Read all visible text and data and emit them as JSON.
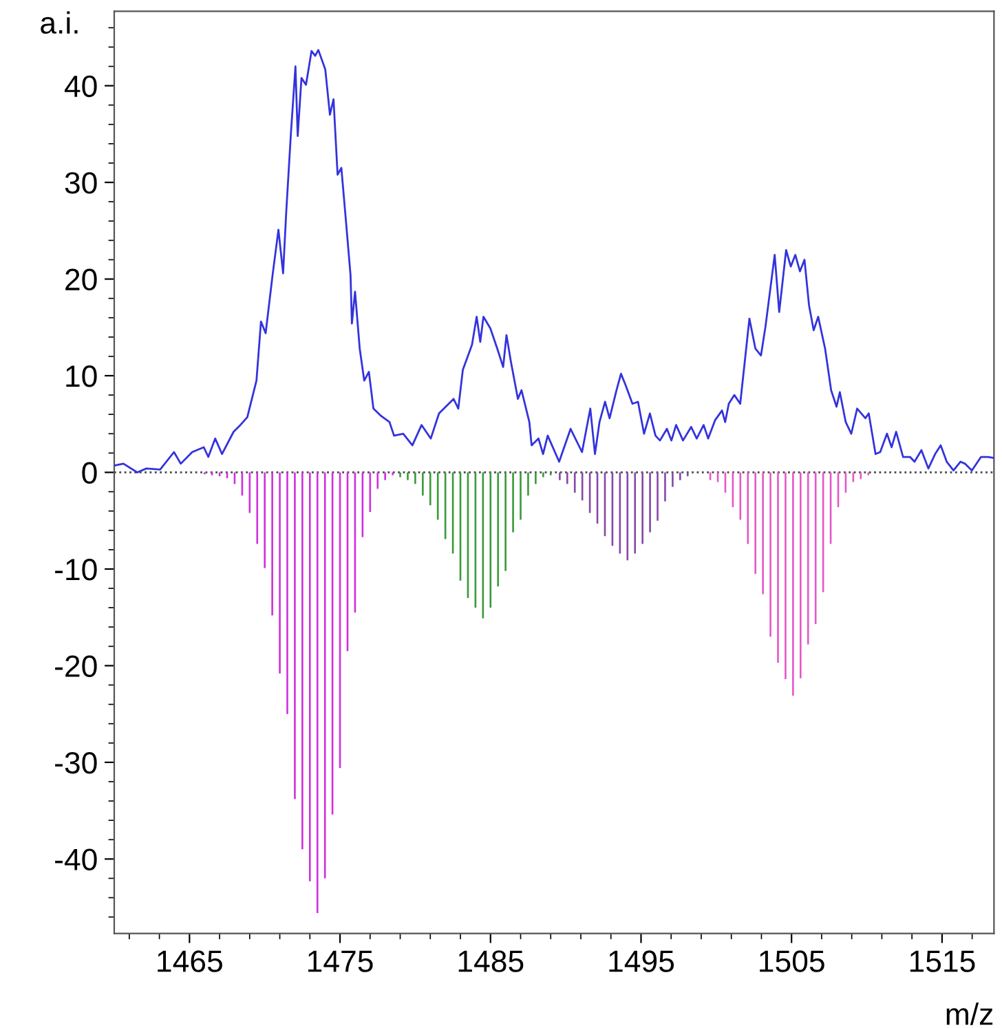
{
  "chart_data": {
    "type": "line",
    "xlabel": "m/z",
    "ylabel": "a.i.",
    "xlim": [
      1460.0,
      1518.45
    ],
    "ylim": [
      -47.7,
      47.7
    ],
    "xticks": [
      {
        "value": 1461,
        "label": null
      },
      {
        "value": 1463,
        "label": null
      },
      1465,
      {
        "value": 1467,
        "label": null
      },
      {
        "value": 1469,
        "label": null
      },
      {
        "value": 1471,
        "label": null
      },
      {
        "value": 1473,
        "label": null
      },
      1475,
      {
        "value": 1477,
        "label": null
      },
      {
        "value": 1479,
        "label": null
      },
      {
        "value": 1481,
        "label": null
      },
      {
        "value": 1483,
        "label": null
      },
      1485,
      {
        "value": 1487,
        "label": null
      },
      {
        "value": 1489,
        "label": null
      },
      {
        "value": 1491,
        "label": null
      },
      {
        "value": 1493,
        "label": null
      },
      1495,
      {
        "value": 1497,
        "label": null
      },
      {
        "value": 1499,
        "label": null
      },
      {
        "value": 1501,
        "label": null
      },
      {
        "value": 1503,
        "label": null
      },
      1505,
      {
        "value": 1507,
        "label": null
      },
      {
        "value": 1509,
        "label": null
      },
      {
        "value": 1511,
        "label": null
      },
      {
        "value": 1513,
        "label": null
      },
      1515,
      {
        "value": 1517,
        "label": null
      }
    ],
    "yticks": [
      {
        "value": -46,
        "label": null
      },
      {
        "value": -44,
        "label": null
      },
      {
        "value": -42,
        "label": null
      },
      -40,
      {
        "value": -38,
        "label": null
      },
      {
        "value": -36,
        "label": null
      },
      {
        "value": -34,
        "label": null
      },
      {
        "value": -32,
        "label": null
      },
      -30,
      {
        "value": -28,
        "label": null
      },
      {
        "value": -26,
        "label": null
      },
      {
        "value": -24,
        "label": null
      },
      {
        "value": -22,
        "label": null
      },
      -20,
      {
        "value": -18,
        "label": null
      },
      {
        "value": -16,
        "label": null
      },
      {
        "value": -14,
        "label": null
      },
      {
        "value": -12,
        "label": null
      },
      -10,
      {
        "value": -8,
        "label": null
      },
      {
        "value": -6,
        "label": null
      },
      {
        "value": -4,
        "label": null
      },
      {
        "value": -2,
        "label": null
      },
      0,
      {
        "value": 2,
        "label": null
      },
      {
        "value": 4,
        "label": null
      },
      {
        "value": 6,
        "label": null
      },
      {
        "value": 8,
        "label": null
      },
      10,
      {
        "value": 12,
        "label": null
      },
      {
        "value": 14,
        "label": null
      },
      {
        "value": 16,
        "label": null
      },
      {
        "value": 18,
        "label": null
      },
      20,
      {
        "value": 22,
        "label": null
      },
      {
        "value": 24,
        "label": null
      },
      {
        "value": 26,
        "label": null
      },
      {
        "value": 28,
        "label": null
      },
      30,
      {
        "value": 32,
        "label": null
      },
      {
        "value": 34,
        "label": null
      },
      {
        "value": 36,
        "label": null
      },
      {
        "value": 38,
        "label": null
      },
      40,
      {
        "value": 42,
        "label": null
      },
      {
        "value": 44,
        "label": null
      },
      {
        "value": 46,
        "label": null
      }
    ],
    "grid": false,
    "legend": false,
    "ref_lines": [
      {
        "axis": "y",
        "value": 0,
        "label": null,
        "color": "#555555",
        "line_style": "dotted"
      }
    ],
    "series": [
      {
        "color": "#3333dd",
        "x": [
          1460.0,
          1460.61,
          1461.53,
          1462.14,
          1463.05,
          1463.97,
          1464.42,
          1465.18,
          1465.95,
          1466.25,
          1466.71,
          1467.16,
          1467.93,
          1468.38,
          1468.84,
          1469.45,
          1469.75,
          1470.06,
          1470.52,
          1470.91,
          1471.22,
          1471.43,
          1471.74,
          1472.04,
          1472.19,
          1472.44,
          1472.74,
          1473.11,
          1473.35,
          1473.56,
          1474.02,
          1474.33,
          1474.57,
          1474.84,
          1475.09,
          1475.39,
          1475.7,
          1475.79,
          1476.0,
          1476.31,
          1476.61,
          1476.92,
          1477.22,
          1477.68,
          1478.29,
          1478.59,
          1479.2,
          1479.81,
          1480.42,
          1481.03,
          1481.58,
          1482.55,
          1482.86,
          1483.16,
          1483.77,
          1484.08,
          1484.32,
          1484.53,
          1484.99,
          1485.45,
          1485.84,
          1486.06,
          1486.36,
          1486.82,
          1487.06,
          1487.58,
          1487.73,
          1488.19,
          1488.49,
          1488.8,
          1489.56,
          1490.32,
          1491.08,
          1491.63,
          1491.94,
          1492.24,
          1492.61,
          1492.91,
          1493.37,
          1493.67,
          1493.98,
          1494.43,
          1494.8,
          1495.2,
          1495.59,
          1495.96,
          1496.26,
          1496.72,
          1497.02,
          1497.33,
          1497.79,
          1498.33,
          1498.7,
          1499.16,
          1499.46,
          1499.92,
          1500.38,
          1500.59,
          1500.83,
          1501.2,
          1501.59,
          1502.2,
          1502.6,
          1502.97,
          1503.27,
          1503.88,
          1504.18,
          1504.64,
          1504.95,
          1505.25,
          1505.56,
          1505.86,
          1506.16,
          1506.47,
          1506.77,
          1507.23,
          1507.63,
          1507.99,
          1508.21,
          1508.6,
          1508.97,
          1509.36,
          1509.91,
          1510.13,
          1510.58,
          1510.89,
          1511.34,
          1511.65,
          1511.95,
          1512.41,
          1512.87,
          1513.17,
          1513.63,
          1514.09,
          1514.54,
          1514.91,
          1515.31,
          1515.76,
          1516.22,
          1516.52,
          1516.98,
          1517.59,
          1518.05,
          1518.44
        ],
        "values": [
          0.7,
          0.9,
          0.0,
          0.4,
          0.3,
          2.1,
          0.9,
          2.1,
          2.6,
          1.6,
          3.5,
          1.9,
          4.2,
          4.9,
          5.7,
          9.5,
          15.6,
          14.4,
          20.4,
          25.1,
          20.6,
          27.0,
          35.1,
          42.0,
          34.8,
          40.8,
          40.1,
          43.6,
          43.1,
          43.7,
          41.7,
          37.0,
          38.6,
          30.8,
          31.5,
          26.1,
          20.4,
          15.4,
          18.7,
          12.8,
          9.5,
          10.4,
          6.6,
          5.9,
          5.2,
          3.8,
          4.0,
          2.8,
          4.9,
          3.5,
          6.1,
          7.6,
          6.6,
          10.6,
          13.2,
          16.1,
          13.5,
          16.1,
          14.9,
          12.8,
          10.9,
          14.2,
          11.4,
          7.6,
          8.5,
          5.2,
          2.8,
          3.5,
          1.9,
          3.8,
          1.1,
          4.5,
          2.1,
          6.6,
          1.9,
          5.2,
          7.3,
          5.6,
          8.5,
          10.2,
          9.0,
          7.1,
          7.3,
          4.0,
          6.1,
          3.8,
          3.3,
          4.5,
          3.3,
          4.9,
          3.3,
          4.7,
          3.5,
          4.9,
          3.5,
          5.4,
          6.4,
          5.2,
          7.1,
          8.0,
          7.1,
          15.9,
          12.8,
          12.1,
          15.1,
          22.5,
          16.6,
          23.0,
          21.3,
          22.5,
          20.8,
          22.0,
          17.3,
          14.7,
          16.1,
          12.8,
          8.5,
          6.8,
          8.3,
          5.2,
          4.0,
          6.6,
          5.6,
          6.1,
          1.9,
          2.1,
          4.0,
          2.6,
          4.2,
          1.6,
          1.6,
          1.1,
          2.3,
          0.4,
          1.9,
          2.8,
          1.1,
          0.2,
          1.1,
          0.9,
          0.2,
          1.6,
          1.6,
          1.5
        ]
      },
      {
        "type": "bar",
        "color": "#d030dd",
        "x": [
          1466.0,
          1466.5,
          1467.0,
          1467.5,
          1468.0,
          1468.5,
          1469.0,
          1469.5,
          1470.0,
          1470.5,
          1471.0,
          1471.5,
          1472.0,
          1472.5,
          1473.0,
          1473.5,
          1474.0,
          1474.5,
          1475.0,
          1475.5,
          1476.0,
          1476.5,
          1477.0,
          1477.5,
          1478.0,
          1478.5
        ],
        "values": [
          -0.2,
          -0.3,
          -0.4,
          -0.6,
          -1.2,
          -2.4,
          -4.2,
          -7.4,
          -9.9,
          -14.8,
          -20.8,
          -25.0,
          -33.8,
          -39.0,
          -42.3,
          -45.6,
          -42.0,
          -35.4,
          -30.6,
          -18.5,
          -14.5,
          -6.7,
          -4.1,
          -1.7,
          -0.8,
          -0.3
        ]
      },
      {
        "type": "bar",
        "color": "#3a9a3a",
        "x": [
          1479.0,
          1479.5,
          1480.0,
          1480.5,
          1481.0,
          1481.5,
          1482.0,
          1482.5,
          1483.0,
          1483.5,
          1484.0,
          1484.5,
          1485.0,
          1485.5,
          1486.0,
          1486.5,
          1487.0,
          1487.5,
          1488.0,
          1488.5,
          1489.0
        ],
        "values": [
          -0.5,
          -0.8,
          -1.2,
          -2.4,
          -3.4,
          -4.9,
          -6.9,
          -8.4,
          -11.2,
          -13.0,
          -14.0,
          -15.1,
          -14.0,
          -11.8,
          -10.2,
          -6.2,
          -4.9,
          -2.4,
          -1.2,
          -0.5,
          -0.3
        ]
      },
      {
        "type": "bar",
        "color": "#8848a8",
        "x": [
          1489.6,
          1490.1,
          1490.6,
          1491.1,
          1491.6,
          1492.1,
          1492.6,
          1493.1,
          1493.6,
          1494.1,
          1494.6,
          1495.1,
          1495.6,
          1496.1,
          1496.6,
          1497.1,
          1497.6,
          1498.1
        ],
        "values": [
          -0.8,
          -1.2,
          -2.1,
          -2.9,
          -4.2,
          -5.3,
          -6.6,
          -7.6,
          -8.4,
          -9.1,
          -8.4,
          -7.4,
          -6.2,
          -5.0,
          -3.0,
          -1.5,
          -0.8,
          -0.4
        ]
      },
      {
        "type": "bar",
        "color": "#e558c8",
        "x": [
          1499.6,
          1500.1,
          1500.6,
          1501.1,
          1501.6,
          1502.1,
          1502.6,
          1503.1,
          1503.6,
          1504.1,
          1504.6,
          1505.1,
          1505.6,
          1506.1,
          1506.6,
          1507.1,
          1507.6,
          1508.1,
          1508.6,
          1509.1,
          1509.6,
          1510.1
        ],
        "values": [
          -0.8,
          -1.0,
          -2.1,
          -3.6,
          -4.9,
          -7.4,
          -10.5,
          -12.6,
          -17.0,
          -19.7,
          -21.4,
          -23.1,
          -21.3,
          -17.8,
          -15.7,
          -12.4,
          -7.4,
          -3.6,
          -2.1,
          -1.0,
          -0.7,
          -0.3
        ]
      }
    ]
  }
}
